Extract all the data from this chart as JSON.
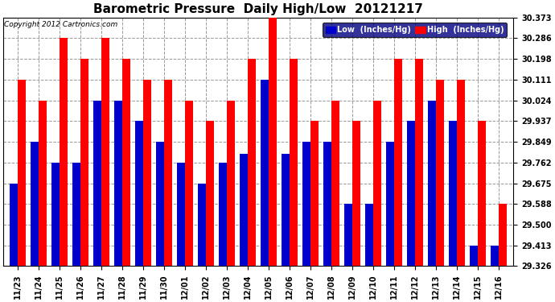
{
  "title": "Barometric Pressure  Daily High/Low  20121217",
  "copyright": "Copyright 2012 Cartronics.com",
  "legend_low": "Low  (Inches/Hg)",
  "legend_high": "High  (Inches/Hg)",
  "dates": [
    "11/23",
    "11/24",
    "11/25",
    "11/26",
    "11/27",
    "11/28",
    "11/29",
    "11/30",
    "12/01",
    "12/02",
    "12/03",
    "12/04",
    "12/05",
    "12/06",
    "12/07",
    "12/08",
    "12/09",
    "12/10",
    "12/11",
    "12/12",
    "12/13",
    "12/14",
    "12/15",
    "12/16"
  ],
  "low_values": [
    29.675,
    29.849,
    29.762,
    29.762,
    30.024,
    30.024,
    29.937,
    29.849,
    29.762,
    29.675,
    29.762,
    29.8,
    30.111,
    29.8,
    29.849,
    29.849,
    29.588,
    29.588,
    29.849,
    29.937,
    30.024,
    29.937,
    29.413,
    29.413
  ],
  "high_values": [
    30.111,
    30.024,
    30.286,
    30.198,
    30.286,
    30.198,
    30.111,
    30.111,
    30.024,
    29.937,
    30.024,
    30.198,
    30.373,
    30.198,
    29.937,
    30.024,
    29.937,
    30.024,
    30.198,
    30.198,
    30.111,
    30.111,
    29.937,
    29.588
  ],
  "ylim_min": 29.326,
  "ylim_max": 30.373,
  "yticks": [
    29.326,
    29.413,
    29.5,
    29.588,
    29.675,
    29.762,
    29.849,
    29.937,
    30.024,
    30.111,
    30.198,
    30.286,
    30.373
  ],
  "low_color": "#0000cc",
  "high_color": "#ff0000",
  "bg_color": "#ffffff",
  "grid_color": "#999999",
  "bar_width": 0.38,
  "title_fontsize": 11,
  "tick_fontsize": 7,
  "legend_bg": "#000080"
}
